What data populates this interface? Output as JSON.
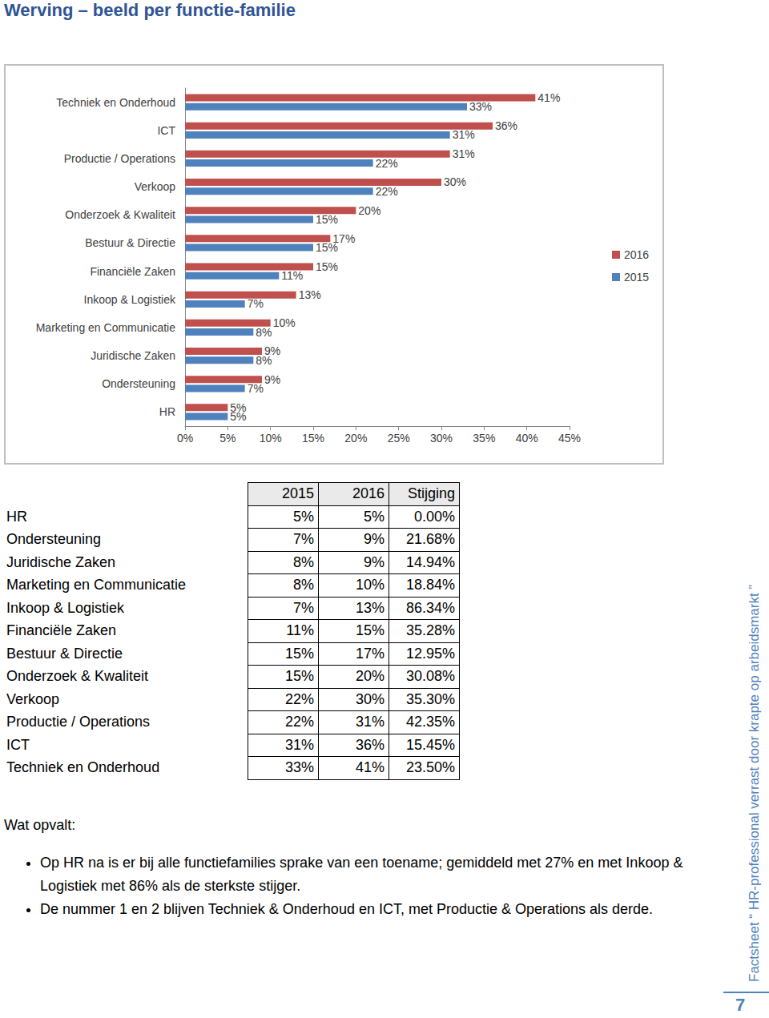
{
  "header": {
    "title": "Werving – beeld per functie-familie"
  },
  "chart_data": {
    "type": "bar",
    "orientation": "horizontal",
    "categories": [
      "HR",
      "Ondersteuning",
      "Juridische Zaken",
      "Marketing en Communicatie",
      "Inkoop & Logistiek",
      "Financiële Zaken",
      "Bestuur & Directie",
      "Onderzoek & Kwaliteit",
      "Verkoop",
      "Productie / Operations",
      "ICT",
      "Techniek en Onderhoud"
    ],
    "series": [
      {
        "name": "2016",
        "color": "#c0504d",
        "values": [
          5,
          9,
          9,
          10,
          13,
          15,
          17,
          20,
          30,
          31,
          36,
          41
        ],
        "value_labels": [
          "5%",
          "9%",
          "9%",
          "10%",
          "13%",
          "15%",
          "17%",
          "20%",
          "30%",
          "31%",
          "36%",
          "41%"
        ]
      },
      {
        "name": "2015",
        "color": "#4f81bd",
        "values": [
          5,
          7,
          8,
          8,
          7,
          11,
          15,
          15,
          22,
          22,
          31,
          33
        ],
        "value_labels": [
          "5%",
          "7%",
          "8%",
          "8%",
          "7%",
          "11%",
          "15%",
          "15%",
          "22%",
          "22%",
          "31%",
          "33%"
        ]
      }
    ],
    "xlim": [
      0,
      45
    ],
    "xticks": [
      {
        "value": 0,
        "label": "0%"
      },
      {
        "value": 5,
        "label": "5%"
      },
      {
        "value": 10,
        "label": "10%"
      },
      {
        "value": 15,
        "label": "15%"
      },
      {
        "value": 20,
        "label": "20%"
      },
      {
        "value": 25,
        "label": "25%"
      },
      {
        "value": 30,
        "label": "30%"
      },
      {
        "value": 35,
        "label": "35%"
      },
      {
        "value": 40,
        "label": "40%"
      },
      {
        "value": 45,
        "label": "45%"
      }
    ],
    "grid": false,
    "legend": "right",
    "data_labels": true
  },
  "table": {
    "header": [
      "2015",
      "2016",
      "Stijging"
    ],
    "rows": [
      [
        "HR",
        "5%",
        "5%",
        "0.00%"
      ],
      [
        "Ondersteuning",
        "7%",
        "9%",
        "21.68%"
      ],
      [
        "Juridische Zaken",
        "8%",
        "9%",
        "14.94%"
      ],
      [
        "Marketing en Communicatie",
        "8%",
        "10%",
        "18.84%"
      ],
      [
        "Inkoop & Logistiek",
        "7%",
        "13%",
        "86.34%"
      ],
      [
        "Financiële Zaken",
        "11%",
        "15%",
        "35.28%"
      ],
      [
        "Bestuur & Directie",
        "15%",
        "17%",
        "12.95%"
      ],
      [
        "Onderzoek & Kwaliteit",
        "15%",
        "20%",
        "30.08%"
      ],
      [
        "Verkoop",
        "22%",
        "30%",
        "35.30%"
      ],
      [
        "Productie / Operations",
        "22%",
        "31%",
        "42.35%"
      ],
      [
        "ICT",
        "31%",
        "36%",
        "15.45%"
      ],
      [
        "Techniek en Onderhoud",
        "33%",
        "41%",
        "23.50%"
      ]
    ]
  },
  "notes": {
    "title": "Wat opvalt:",
    "bullets": [
      "Op HR na is er bij alle functiefamilies sprake van een toename; gemiddeld met 27% en met Inkoop & Logistiek met 86% als de sterkste stijger.",
      "De nummer 1 en 2 blijven Techniek & Onderhoud en ICT, met  Productie & Operations als derde."
    ]
  },
  "sidebar": "Factsheet “ HR-professional verrast door krapte op arbeidsmarkt ”",
  "page_number": "7"
}
